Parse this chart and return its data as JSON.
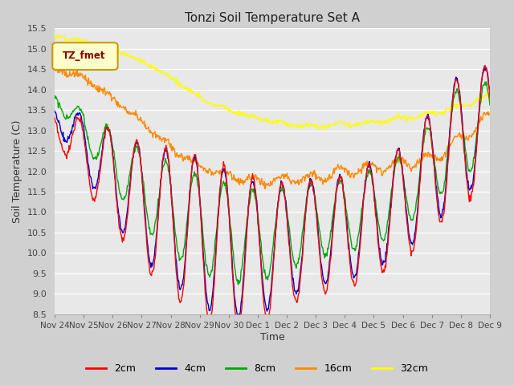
{
  "title": "Tonzi Soil Temperature Set A",
  "xlabel": "Time",
  "ylabel": "Soil Temperature (C)",
  "ylim": [
    8.5,
    15.5
  ],
  "legend_label": "TZ_fmet",
  "legend_border_color": "#cc9900",
  "legend_text_color": "#880000",
  "series_colors": {
    "2cm": "#ff0000",
    "4cm": "#0000cc",
    "8cm": "#00aa00",
    "16cm": "#ff8800",
    "32cm": "#ffff00"
  },
  "tick_dates": [
    "Nov 24",
    "Nov 25",
    "Nov 26",
    "Nov 27",
    "Nov 28",
    "Nov 29",
    "Nov 30",
    "Dec 1",
    "Dec 2",
    "Dec 3",
    "Dec 4",
    "Dec 5",
    "Dec 6",
    "Dec 7",
    "Dec 8",
    "Dec 9"
  ],
  "yticks": [
    8.5,
    9.0,
    9.5,
    10.0,
    10.5,
    11.0,
    11.5,
    12.0,
    12.5,
    13.0,
    13.5,
    14.0,
    14.5,
    15.0,
    15.5
  ]
}
